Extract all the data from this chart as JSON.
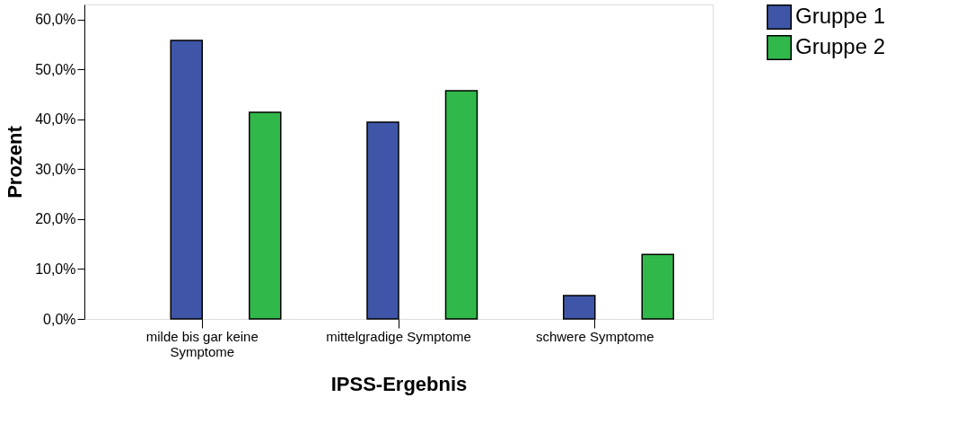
{
  "chart_data": {
    "type": "bar",
    "xlabel": "IPSS-Ergebnis",
    "ylabel": "Prozent",
    "categories": [
      "milde bis gar keine Symptome",
      "mittelgradige Symptome",
      "schwere Symptome"
    ],
    "series": [
      {
        "name": "Gruppe 1",
        "color": "#3f56a8",
        "values": [
          55.8,
          39.4,
          4.7
        ]
      },
      {
        "name": "Gruppe 2",
        "color": "#31b84a",
        "values": [
          41.4,
          45.7,
          12.9
        ]
      }
    ],
    "ylim": [
      0,
      63
    ],
    "yticks": [
      {
        "value": 0,
        "label": "0,0%"
      },
      {
        "value": 10,
        "label": "10,0%"
      },
      {
        "value": 20,
        "label": "20,0%"
      },
      {
        "value": 30,
        "label": "30,0%"
      },
      {
        "value": 40,
        "label": "40,0%"
      },
      {
        "value": 50,
        "label": "50,0%"
      },
      {
        "value": 60,
        "label": "60,0%"
      }
    ],
    "grid": false,
    "legend": "top right"
  }
}
